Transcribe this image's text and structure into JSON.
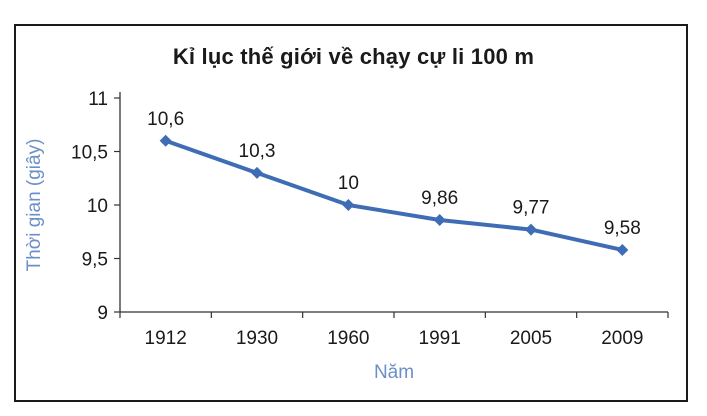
{
  "chart_data": {
    "type": "line",
    "title": "Kỉ lục thế giới về chạy cự li 100 m",
    "xlabel": "Năm",
    "ylabel": "Thời gian (giây)",
    "categories": [
      "1912",
      "1930",
      "1960",
      "1991",
      "2005",
      "2009"
    ],
    "series": [
      {
        "values": [
          10.6,
          10.3,
          10,
          9.86,
          9.77,
          9.58
        ],
        "labels": [
          "10,6",
          "10,3",
          "10",
          "9,86",
          "9,77",
          "9,58"
        ]
      }
    ],
    "ylim": [
      9,
      11
    ],
    "yticks": [
      9,
      9.5,
      10,
      10.5,
      11
    ],
    "ytick_labels": [
      "9",
      "9,5",
      "10",
      "10,5",
      "11"
    ],
    "grid": false,
    "line_color": "#3f6db5",
    "axis_title_color": "#6b8fc7"
  }
}
